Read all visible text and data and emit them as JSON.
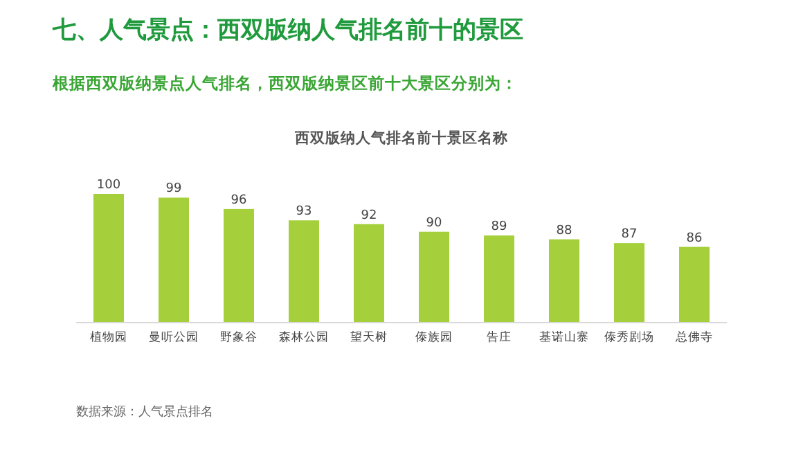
{
  "chart_data": {
    "type": "bar",
    "title": "七、人气景点：西双版纳人气排名前十的景区",
    "subtitle": "根据西双版纳景点人气排名，西双版纳景区前十大景区分别为：",
    "annotations": [
      "西双版纳人气排名前十景区名称",
      "数据来源：人气景点排名"
    ],
    "categories": [
      "植物园",
      "曼听公园",
      "野象谷",
      "森林公园",
      "望天树",
      "傣族园",
      "告庄",
      "基诺山寨",
      "傣秀剧场",
      "总佛寺"
    ],
    "values": [
      100,
      99,
      96,
      93,
      92,
      90,
      89,
      88,
      87,
      86
    ],
    "color": "#a5d03c",
    "ylim": [
      66,
      100
    ],
    "data_labels": true
  }
}
